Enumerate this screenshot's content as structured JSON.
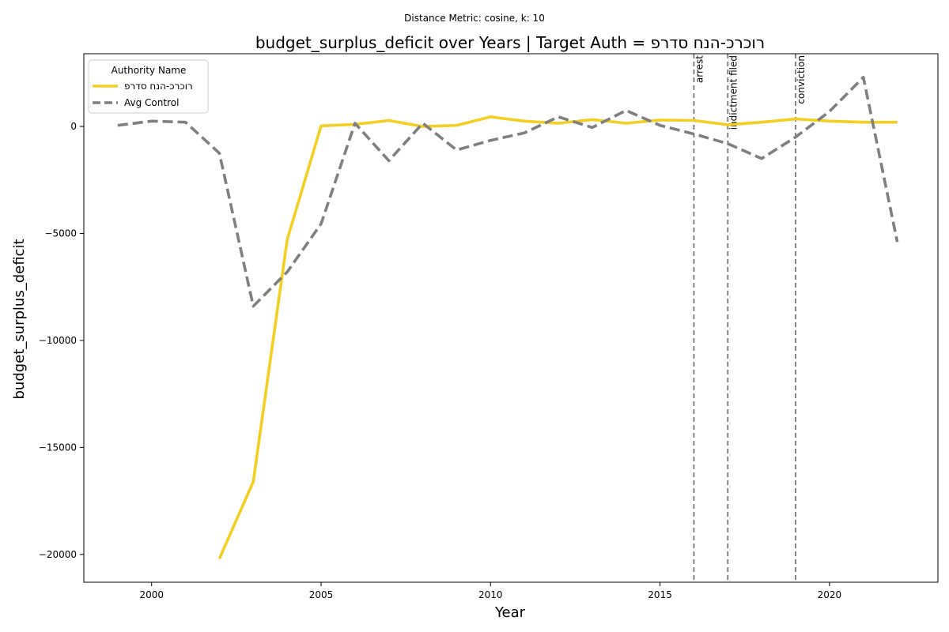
{
  "chart_data": {
    "type": "line",
    "suptitle": "Distance Metric: cosine, k: 10",
    "title": "budget_surplus_deficit over Years | Target Auth = רוכרכ-הנח סדרפ",
    "xlabel": "Year",
    "ylabel": "budget_surplus_deficit",
    "xlim": [
      1998,
      2023.2
    ],
    "ylim": [
      -21300,
      3400
    ],
    "xticks": [
      2000,
      2005,
      2010,
      2015,
      2020
    ],
    "yticks": [
      0,
      -5000,
      -10000,
      -15000,
      -20000
    ],
    "ytick_labels": [
      "0",
      "−5000",
      "−10000",
      "−15000",
      "−20000"
    ],
    "legend": {
      "title": "Authority Name",
      "placement": "upper-left"
    },
    "series": [
      {
        "name": "רוכרכ-הנח סדרפ",
        "color": "#f2cf20",
        "style": "solid",
        "x": [
          2002,
          2003,
          2004,
          2005,
          2006,
          2007,
          2008,
          2009,
          2010,
          2011,
          2012,
          2013,
          2014,
          2015,
          2016,
          2017,
          2018,
          2019,
          2020,
          2021,
          2022
        ],
        "values": [
          -20200,
          -16600,
          -5300,
          30,
          100,
          280,
          0,
          50,
          450,
          250,
          150,
          320,
          150,
          300,
          280,
          80,
          200,
          350,
          250,
          200,
          200
        ]
      },
      {
        "name": "Avg Control",
        "color": "#808080",
        "style": "dashed",
        "x": [
          1999,
          2000,
          2001,
          2002,
          2003,
          2004,
          2005,
          2006,
          2007,
          2008,
          2009,
          2010,
          2011,
          2012,
          2013,
          2014,
          2015,
          2016,
          2017,
          2018,
          2019,
          2020,
          2021,
          2022
        ],
        "values": [
          50,
          250,
          200,
          -1250,
          -8400,
          -6800,
          -4550,
          150,
          -1600,
          150,
          -1100,
          -650,
          -300,
          450,
          -50,
          750,
          50,
          -350,
          -800,
          -1500,
          -500,
          700,
          2300,
          -5400
        ]
      }
    ],
    "events": [
      {
        "x": 2016,
        "label": "arrest"
      },
      {
        "x": 2017,
        "label": "indictment filed"
      },
      {
        "x": 2019,
        "label": "conviction"
      }
    ]
  }
}
